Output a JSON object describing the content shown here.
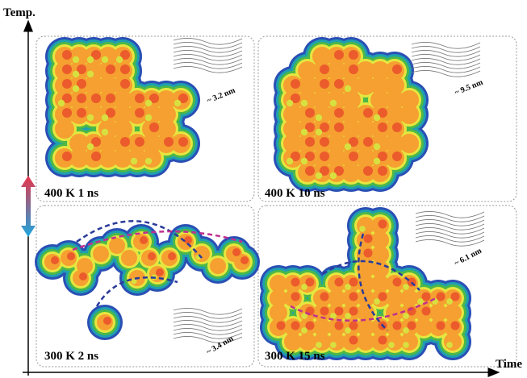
{
  "axes": {
    "y_label": "Temp.",
    "x_label": "Time"
  },
  "panels": [
    {
      "label": "400 K 1 ns",
      "scale": "~ 3.2 nm"
    },
    {
      "label": "400 K 10 ns",
      "scale": "~ 9.5 nm"
    },
    {
      "label": "300 K 2 ns",
      "scale": "~ 3.4 nm"
    },
    {
      "label": "300 K 15 ns",
      "scale": "~ 6.1 nm"
    }
  ]
}
